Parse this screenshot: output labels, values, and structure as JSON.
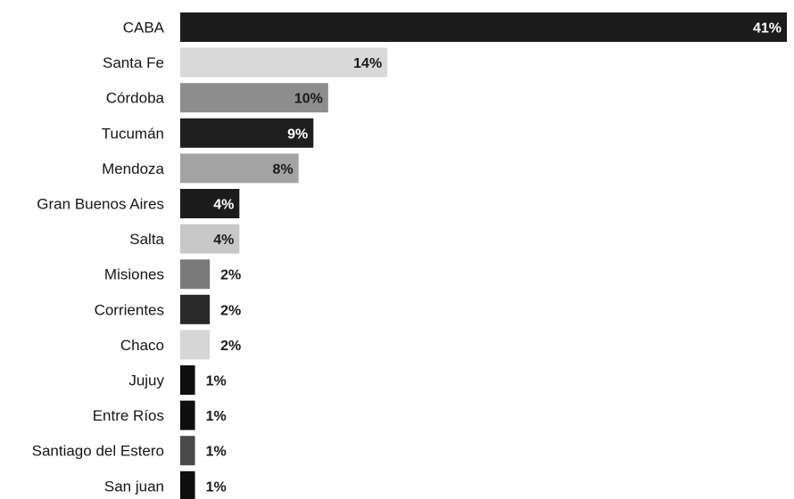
{
  "chart_data": {
    "type": "bar",
    "orientation": "horizontal",
    "unit": "%",
    "xlim": [
      0,
      41
    ],
    "grid": false,
    "legend": "none",
    "title": "",
    "xlabel": "",
    "ylabel": "",
    "categories": [
      "CABA",
      "Santa Fe",
      "Córdoba",
      "Tucumán",
      "Mendoza",
      "Gran Buenos Aires",
      "Salta",
      "Misiones",
      "Corrientes",
      "Chaco",
      "Jujuy",
      "Entre Ríos",
      "Santiago del Estero",
      "San juan"
    ],
    "values": [
      41,
      14,
      10,
      9,
      8,
      4,
      4,
      2,
      2,
      2,
      1,
      1,
      1,
      1
    ],
    "value_labels": [
      "41%",
      "14%",
      "10%",
      "9%",
      "8%",
      "4%",
      "4%",
      "2%",
      "2%",
      "2%",
      "1%",
      "1%",
      "1%",
      "1%"
    ],
    "bar_colors": [
      "#1c1c1c",
      "#d9d9d9",
      "#8d8d8d",
      "#1e1e1e",
      "#a3a3a3",
      "#1c1c1c",
      "#c8c8c8",
      "#7a7a7a",
      "#2a2a2a",
      "#d6d6d6",
      "#0f0f0f",
      "#0f0f0f",
      "#4a4a4a",
      "#0f0f0f"
    ],
    "label_colors": [
      "#ffffff",
      "#1a1a1a",
      "#1a1a1a",
      "#ffffff",
      "#1a1a1a",
      "#ffffff",
      "#1a1a1a",
      "#1a1a1a",
      "#1a1a1a",
      "#1a1a1a",
      "#1a1a1a",
      "#1a1a1a",
      "#1a1a1a",
      "#1a1a1a"
    ]
  }
}
